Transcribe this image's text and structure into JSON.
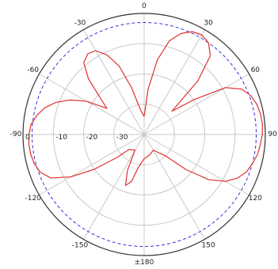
{
  "chart_data": {
    "type": "polar",
    "angle_unit": "degrees",
    "angle_zero": "top",
    "angle_direction": "clockwise",
    "angle_ticks": [
      0,
      30,
      60,
      90,
      120,
      150,
      180,
      -150,
      -120,
      -90,
      -60,
      -30
    ],
    "angle_tick_labels": [
      "0",
      "30",
      "60",
      "90",
      "120",
      "150",
      "±180",
      "-150",
      "-120",
      "-90",
      "-60",
      "-30"
    ],
    "radial_ticks": [
      0,
      -10,
      -20,
      -30
    ],
    "radial_tick_labels": [
      "0",
      "-10",
      "-20",
      "-30"
    ],
    "rlim": [
      -40,
      0
    ],
    "grid": true,
    "reference_level": -3,
    "series": [
      {
        "color": "#e03030",
        "points": [
          [
            0,
            -34
          ],
          [
            5,
            -25
          ],
          [
            10,
            -15
          ],
          [
            15,
            -8
          ],
          [
            20,
            -4.5
          ],
          [
            25,
            -2.5
          ],
          [
            30,
            -2
          ],
          [
            35,
            -3
          ],
          [
            40,
            -6
          ],
          [
            45,
            -15
          ],
          [
            50,
            -28
          ],
          [
            55,
            -20
          ],
          [
            60,
            -9
          ],
          [
            65,
            -4.5
          ],
          [
            70,
            -2.5
          ],
          [
            75,
            -1.5
          ],
          [
            80,
            -1
          ],
          [
            85,
            -0.8
          ],
          [
            90,
            -1
          ],
          [
            95,
            -1.5
          ],
          [
            100,
            -2
          ],
          [
            105,
            -3
          ],
          [
            110,
            -4
          ],
          [
            115,
            -6
          ],
          [
            120,
            -9
          ],
          [
            125,
            -14
          ],
          [
            130,
            -22
          ],
          [
            135,
            -30
          ],
          [
            150,
            -34
          ],
          [
            165,
            -33
          ],
          [
            180,
            -32
          ],
          [
            190,
            -29
          ],
          [
            195,
            -24
          ],
          [
            200,
            -22
          ],
          [
            205,
            -27
          ],
          [
            210,
            -34
          ],
          [
            225,
            -33
          ],
          [
            230,
            -28
          ],
          [
            235,
            -20
          ],
          [
            240,
            -12
          ],
          [
            245,
            -6
          ],
          [
            250,
            -3.5
          ],
          [
            255,
            -2.5
          ],
          [
            260,
            -2
          ],
          [
            265,
            -1.8
          ],
          [
            270,
            -2
          ],
          [
            275,
            -2.5
          ],
          [
            280,
            -4
          ],
          [
            285,
            -6
          ],
          [
            290,
            -9
          ],
          [
            295,
            -13
          ],
          [
            300,
            -18
          ],
          [
            305,
            -25
          ],
          [
            310,
            -21
          ],
          [
            315,
            -14
          ],
          [
            320,
            -9
          ],
          [
            325,
            -7.5
          ],
          [
            330,
            -8
          ],
          [
            335,
            -11
          ],
          [
            340,
            -16
          ],
          [
            345,
            -24
          ],
          [
            352,
            -32
          ]
        ]
      }
    ]
  },
  "colors": {
    "background": "#ffffff",
    "outer_circle": "#333333",
    "grid": "#c8c8c8",
    "reference_circle": "#3333dd",
    "series": "#e03030"
  }
}
